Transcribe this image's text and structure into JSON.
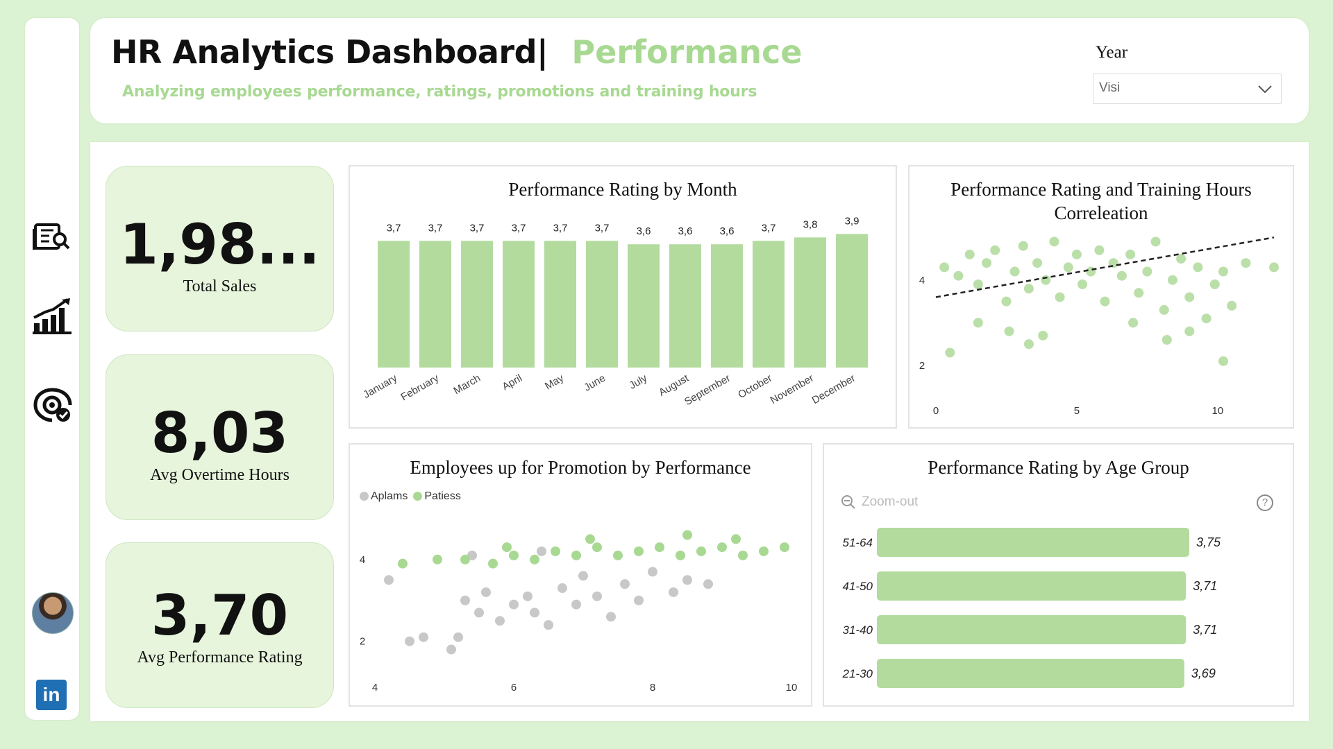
{
  "header": {
    "title": "HR Analytics Dashboard|",
    "title_highlight": "Performance",
    "subtitle": "Analyzing employees performance, ratings, promotions and training hours"
  },
  "filter": {
    "label": "Year",
    "value": "Visi"
  },
  "sidebar": {
    "items": [
      {
        "icon": "report-search-icon"
      },
      {
        "icon": "growth-chart-icon"
      },
      {
        "icon": "performance-check-icon"
      }
    ],
    "linkedin_label": "in"
  },
  "kpis": [
    {
      "value": "1,98...",
      "label": "Total Sales"
    },
    {
      "value": "8,03",
      "label": "Avg Overtime Hours"
    },
    {
      "value": "3,70",
      "label": "Avg Performance Rating"
    }
  ],
  "colors": {
    "accent": "#a8d992",
    "bar": "#b3db9e",
    "grey": "#c8c8c8",
    "background": "#dcf3d3"
  },
  "chart_data": [
    {
      "type": "bar",
      "title": "Performance Rating by Month",
      "categories": [
        "January",
        "February",
        "March",
        "April",
        "May",
        "June",
        "July",
        "August",
        "September",
        "October",
        "November",
        "December"
      ],
      "values": [
        3.7,
        3.7,
        3.7,
        3.7,
        3.7,
        3.7,
        3.6,
        3.6,
        3.6,
        3.7,
        3.8,
        3.9
      ],
      "value_labels": [
        "3,7",
        "3,7",
        "3,7",
        "3,7",
        "3,7",
        "3,7",
        "3,6",
        "3,6",
        "3,6",
        "3,7",
        "3,8",
        "3,9"
      ]
    },
    {
      "type": "scatter",
      "title": "Performance Rating and Training Hours Correleation",
      "x_ticks": [
        "0",
        "5",
        "10"
      ],
      "y_ticks": [
        "4",
        "2"
      ],
      "xlim": [
        0,
        12
      ],
      "ylim": [
        1.3,
        5.2
      ],
      "trendline": [
        [
          0,
          3.6
        ],
        [
          12,
          5.0
        ]
      ],
      "points": [
        [
          0.3,
          4.3
        ],
        [
          0.8,
          4.1
        ],
        [
          1.2,
          4.6
        ],
        [
          1.5,
          3.9
        ],
        [
          1.8,
          4.4
        ],
        [
          2.1,
          4.7
        ],
        [
          2.5,
          3.5
        ],
        [
          2.8,
          4.2
        ],
        [
          3.1,
          4.8
        ],
        [
          3.3,
          3.8
        ],
        [
          3.6,
          4.4
        ],
        [
          3.9,
          4.0
        ],
        [
          4.2,
          4.9
        ],
        [
          4.4,
          3.6
        ],
        [
          4.7,
          4.3
        ],
        [
          5.0,
          4.6
        ],
        [
          5.2,
          3.9
        ],
        [
          5.5,
          4.2
        ],
        [
          5.8,
          4.7
        ],
        [
          6.0,
          3.5
        ],
        [
          6.3,
          4.4
        ],
        [
          6.6,
          4.1
        ],
        [
          6.9,
          4.6
        ],
        [
          7.2,
          3.7
        ],
        [
          7.5,
          4.2
        ],
        [
          7.8,
          4.9
        ],
        [
          8.1,
          3.3
        ],
        [
          8.4,
          4.0
        ],
        [
          8.7,
          4.5
        ],
        [
          9.0,
          3.6
        ],
        [
          9.3,
          4.3
        ],
        [
          9.6,
          3.1
        ],
        [
          9.9,
          3.9
        ],
        [
          10.2,
          4.2
        ],
        [
          10.5,
          3.4
        ],
        [
          11.0,
          4.4
        ],
        [
          12.0,
          4.3
        ],
        [
          0.5,
          2.3
        ],
        [
          1.5,
          3.0
        ],
        [
          2.6,
          2.8
        ],
        [
          3.3,
          2.5
        ],
        [
          3.8,
          2.7
        ],
        [
          7.0,
          3.0
        ],
        [
          8.2,
          2.6
        ],
        [
          9.0,
          2.8
        ],
        [
          10.2,
          2.1
        ]
      ]
    },
    {
      "type": "scatter",
      "title": "Employees up for Promotion by Performance",
      "legend": [
        "Aplams",
        "Patiess"
      ],
      "x_ticks": [
        "4",
        "6",
        "8",
        "10"
      ],
      "y_ticks": [
        "4",
        "2"
      ],
      "xlim": [
        4,
        10
      ],
      "ylim": [
        1.3,
        5.2
      ],
      "series": [
        {
          "name": "Aplams",
          "points": [
            [
              4.2,
              3.5
            ],
            [
              4.5,
              2.0
            ],
            [
              4.7,
              2.1
            ],
            [
              5.1,
              1.8
            ],
            [
              5.2,
              2.1
            ],
            [
              5.3,
              3.0
            ],
            [
              5.5,
              2.7
            ],
            [
              5.6,
              3.2
            ],
            [
              5.8,
              2.5
            ],
            [
              6.0,
              2.9
            ],
            [
              6.2,
              3.1
            ],
            [
              6.3,
              2.7
            ],
            [
              6.5,
              2.4
            ],
            [
              6.7,
              3.3
            ],
            [
              6.9,
              2.9
            ],
            [
              7.0,
              3.6
            ],
            [
              7.2,
              3.1
            ],
            [
              7.4,
              2.6
            ],
            [
              7.6,
              3.4
            ],
            [
              7.8,
              3.0
            ],
            [
              8.0,
              3.7
            ],
            [
              8.3,
              3.2
            ],
            [
              8.5,
              3.5
            ],
            [
              8.8,
              3.4
            ],
            [
              5.4,
              4.1
            ],
            [
              6.4,
              4.2
            ]
          ]
        },
        {
          "name": "Patiess",
          "points": [
            [
              4.4,
              3.9
            ],
            [
              4.9,
              4.0
            ],
            [
              5.3,
              4.0
            ],
            [
              5.7,
              3.9
            ],
            [
              6.0,
              4.1
            ],
            [
              6.3,
              4.0
            ],
            [
              6.6,
              4.2
            ],
            [
              6.9,
              4.1
            ],
            [
              7.2,
              4.3
            ],
            [
              7.5,
              4.1
            ],
            [
              7.8,
              4.2
            ],
            [
              8.1,
              4.3
            ],
            [
              8.4,
              4.1
            ],
            [
              8.7,
              4.2
            ],
            [
              9.0,
              4.3
            ],
            [
              9.3,
              4.1
            ],
            [
              9.6,
              4.2
            ],
            [
              9.9,
              4.3
            ],
            [
              5.9,
              4.3
            ],
            [
              7.1,
              4.5
            ],
            [
              8.5,
              4.6
            ],
            [
              9.2,
              4.5
            ]
          ]
        }
      ]
    },
    {
      "type": "bar",
      "orientation": "horizontal",
      "title": "Performance Rating by Age Group",
      "categories": [
        "51-64",
        "41-50",
        "31-40",
        "21-30"
      ],
      "values": [
        3.75,
        3.71,
        3.71,
        3.69
      ],
      "value_labels": [
        "3,75",
        "3,71",
        "3,71",
        "3,69"
      ],
      "zoom_label": "Zoom-out",
      "help_label": "?"
    }
  ]
}
